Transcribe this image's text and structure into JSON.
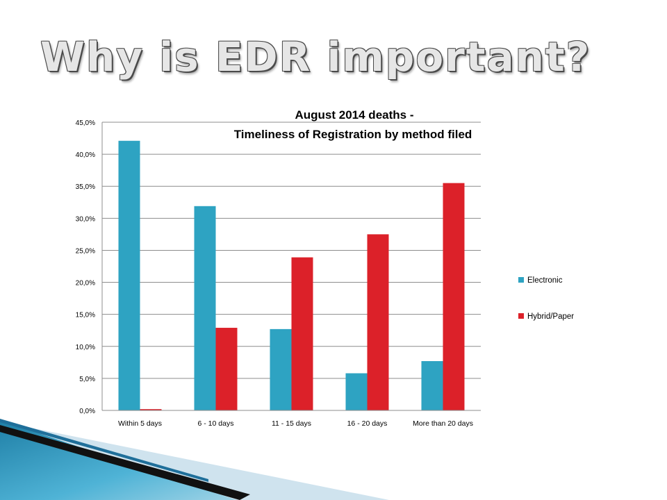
{
  "slide": {
    "title": "Why is EDR important?"
  },
  "chart_data": {
    "type": "bar",
    "title_lines": [
      "August 2014 deaths -",
      "Timeliness of Registration by method filed"
    ],
    "categories": [
      "Within 5 days",
      "6 - 10 days",
      "11 - 15 days",
      "16 - 20 days",
      "More than 20 days"
    ],
    "series": [
      {
        "name": "Electronic",
        "color": "#2ea3c2",
        "values": [
          42.1,
          31.9,
          12.7,
          5.8,
          7.7
        ]
      },
      {
        "name": "Hybrid/Paper",
        "color": "#dc2129",
        "values": [
          0.2,
          12.9,
          23.9,
          27.5,
          35.5
        ]
      }
    ],
    "ylim": [
      0,
      45
    ],
    "yticks": [
      0,
      5,
      10,
      15,
      20,
      25,
      30,
      35,
      40,
      45
    ],
    "ytick_labels": [
      "0,0%",
      "5,0%",
      "10,0%",
      "15,0%",
      "20,0%",
      "25,0%",
      "30,0%",
      "35,0%",
      "40,0%",
      "45,0%"
    ],
    "grid": true,
    "legend_position": "right"
  },
  "colors": {
    "title_fill": "#e6e6e6",
    "title_outline": "#4a4a4a",
    "gridline": "#8c8c8c",
    "decor_teal": "#3d9fc2",
    "decor_light": "#cfe3ee"
  }
}
